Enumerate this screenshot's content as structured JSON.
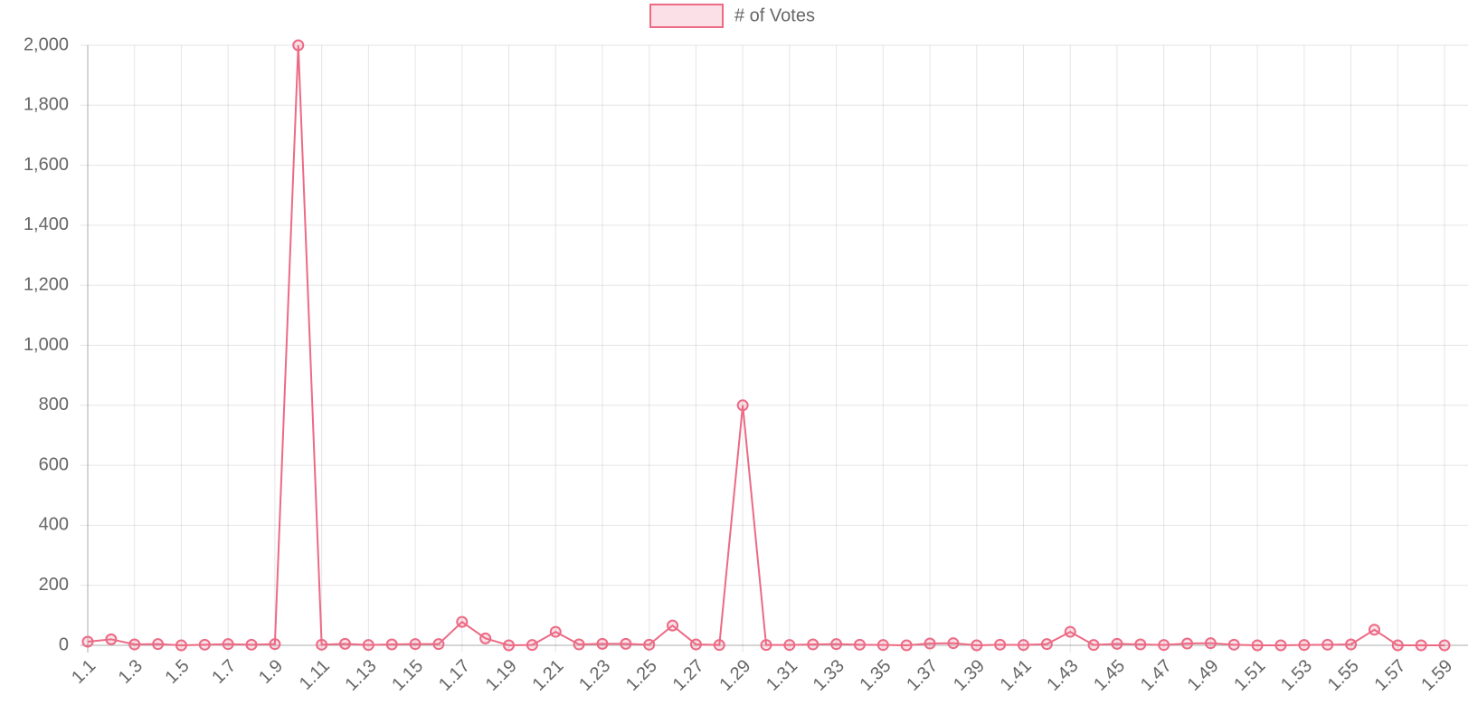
{
  "chart_data": {
    "type": "line",
    "categories": [
      "1.1",
      null,
      "1.3",
      null,
      "1.5",
      null,
      "1.7",
      null,
      "1.9",
      null,
      "1.11",
      null,
      "1.13",
      null,
      "1.15",
      null,
      "1.17",
      null,
      "1.19",
      null,
      "1.21",
      null,
      "1.23",
      null,
      "1.25",
      null,
      "1.27",
      null,
      "1.29",
      null,
      "1.31",
      null,
      "1.33",
      null,
      "1.35",
      null,
      "1.37",
      null,
      "1.39",
      null,
      "1.41",
      null,
      "1.43",
      null,
      "1.45",
      null,
      "1.47",
      null,
      "1.49",
      null,
      "1.51",
      null,
      "1.53",
      null,
      "1.55",
      null,
      "1.57",
      null,
      "1.59"
    ],
    "series": [
      {
        "name": "# of Votes",
        "color": "#ec6a85",
        "values": [
          12,
          20,
          3,
          4,
          0,
          2,
          4,
          2,
          4,
          2000,
          2,
          5,
          1,
          3,
          4,
          4,
          78,
          23,
          0,
          1,
          45,
          3,
          5,
          5,
          2,
          66,
          3,
          1,
          800,
          1,
          1,
          3,
          4,
          2,
          1,
          0,
          6,
          7,
          0,
          2,
          1,
          4,
          45,
          1,
          5,
          3,
          1,
          6,
          7,
          2,
          0,
          0,
          1,
          2,
          3,
          52,
          0,
          0,
          0
        ]
      }
    ],
    "ylim": [
      0,
      2000
    ],
    "yticks": [
      0,
      200,
      400,
      600,
      800,
      {
        "value": 1000,
        "label": "1,000"
      },
      {
        "value": 1200,
        "label": "1,200"
      },
      {
        "value": 1400,
        "label": "1,400"
      },
      {
        "value": 1600,
        "label": "1,600"
      },
      {
        "value": 1800,
        "label": "1,800"
      },
      {
        "value": 2000,
        "label": "2,000"
      }
    ],
    "grid": true,
    "legend": "top"
  }
}
